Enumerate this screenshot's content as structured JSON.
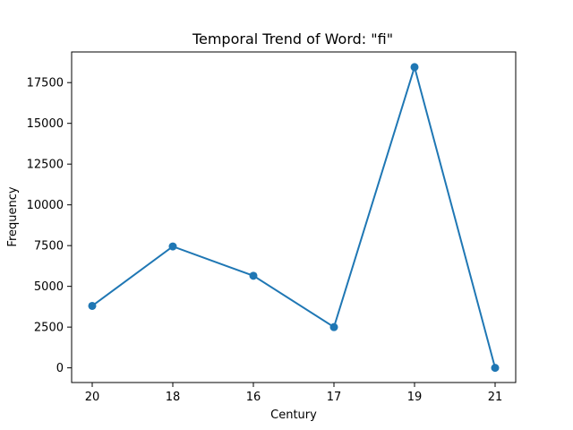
{
  "chart_data": {
    "type": "line",
    "title": "Temporal Trend of Word: \"fi\"",
    "xlabel": "Century",
    "ylabel": "Frequency",
    "categories": [
      "20",
      "18",
      "16",
      "17",
      "19",
      "21"
    ],
    "values": [
      3800,
      7450,
      5650,
      2500,
      18450,
      0
    ],
    "ylim": [
      -900,
      19380
    ],
    "yticks": [
      0,
      2500,
      5000,
      7500,
      10000,
      12500,
      15000,
      17500
    ],
    "ytick_labels": [
      "0",
      "2500",
      "5000",
      "7500",
      "10000",
      "12500",
      "15000",
      "17500"
    ],
    "grid": false,
    "markers": true,
    "line_color": "#1f77b4"
  }
}
